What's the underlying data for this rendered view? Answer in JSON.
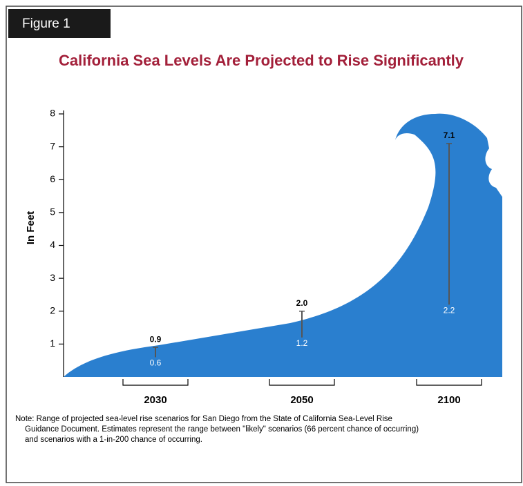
{
  "figure_label": "Figure 1",
  "chart_data": {
    "type": "range",
    "title": "California Sea Levels Are Projected to Rise Significantly",
    "y_label": "In Feet",
    "categories": [
      "2030",
      "2050",
      "2100"
    ],
    "series": [
      {
        "values": [
          0.6,
          1.2,
          2.2
        ],
        "color": "#ffffff"
      },
      {
        "values": [
          0.9,
          2,
          7.1
        ],
        "value_labels": [
          "0.9",
          "2.0",
          "7.1"
        ],
        "color": "#000000"
      }
    ],
    "ylim": [
      0,
      8
    ],
    "yticks": [
      1,
      2,
      3,
      4,
      5,
      6,
      7,
      8
    ],
    "note": [
      "Note: Range of projected sea-level rise scenarios for San Diego from the State of California Sea-Level Rise",
      "Guidance Document. Estimates represent the range between \"likely\" scenarios (66 percent chance of occurring)",
      "and scenarios with a 1-in-200 chance of occurring."
    ]
  }
}
